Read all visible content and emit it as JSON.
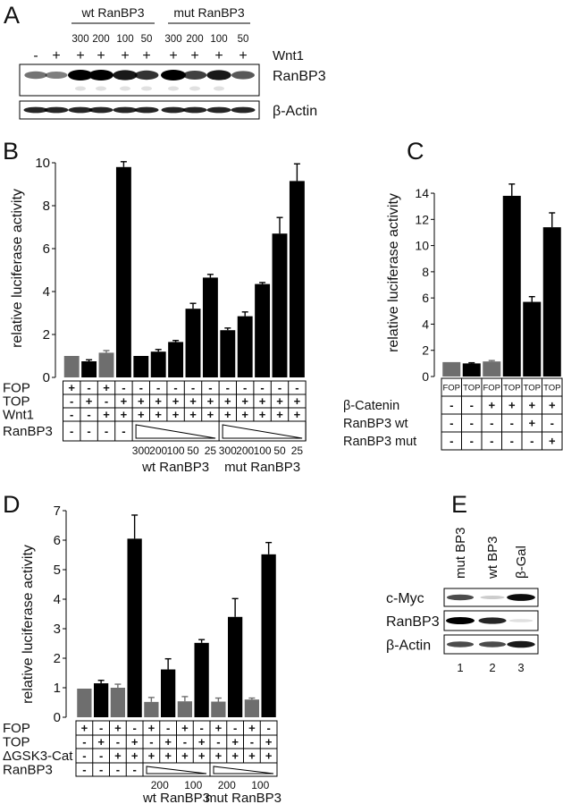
{
  "panel_labels": [
    "A",
    "B",
    "C",
    "D",
    "E"
  ],
  "colors": {
    "black": "#000000",
    "gray": "#6e6e6e"
  },
  "panel_a": {
    "groups": [
      "wt RanBP3",
      "mut RanBP3"
    ],
    "doses": [
      "300",
      "200",
      "100",
      "50",
      "300",
      "200",
      "100",
      "50"
    ],
    "wnt1_signs": [
      "-",
      "+",
      "+",
      "+",
      "+",
      "+",
      "+",
      "+",
      "+",
      "+"
    ],
    "wnt1_label": "Wnt1",
    "blots": [
      {
        "label": "RanBP3",
        "band_intensity": [
          0.55,
          0.5,
          1,
          1,
          0.9,
          0.8,
          1,
          0.75,
          0.9,
          0.65
        ]
      },
      {
        "label": "β-Actin",
        "band_intensity": [
          0.85,
          0.85,
          0.85,
          0.85,
          0.85,
          0.85,
          0.85,
          0.85,
          0.85,
          0.85
        ]
      }
    ]
  },
  "chart_data": [
    {
      "panel": "B",
      "type": "bar",
      "ylabel": "relative luciferase activity",
      "ylim": [
        0,
        10
      ],
      "yticks": [
        "0",
        "2",
        "4",
        "6",
        "8",
        "10"
      ],
      "grid": false,
      "values": [
        1.0,
        0.75,
        1.15,
        9.8,
        1.0,
        1.2,
        1.65,
        3.2,
        4.65,
        2.2,
        2.85,
        4.35,
        6.7,
        9.15
      ],
      "error_upper": [
        null,
        0.82,
        1.25,
        10.05,
        null,
        1.3,
        1.72,
        3.45,
        4.8,
        2.3,
        3.05,
        4.42,
        7.45,
        9.95
      ],
      "bar_colors": [
        "gray",
        "black",
        "gray",
        "black",
        "black",
        "black",
        "black",
        "black",
        "black",
        "black",
        "black",
        "black",
        "black",
        "black"
      ],
      "table": {
        "rows": [
          {
            "label": "FOP",
            "cells": [
              "+",
              "-",
              "+",
              "-",
              "-",
              "-",
              "-",
              "-",
              "-",
              "-",
              "-",
              "-",
              "-",
              "-"
            ]
          },
          {
            "label": "TOP",
            "cells": [
              "-",
              "+",
              "-",
              "+",
              "+",
              "+",
              "+",
              "+",
              "+",
              "+",
              "+",
              "+",
              "+",
              "+"
            ]
          },
          {
            "label": "Wnt1",
            "cells": [
              "-",
              "-",
              "+",
              "+",
              "+",
              "+",
              "+",
              "+",
              "+",
              "+",
              "+",
              "+",
              "+",
              "+"
            ]
          },
          {
            "label": "RanBP3",
            "cells": [
              "-",
              "-",
              "-",
              "-"
            ],
            "spans": [
              {
                "start": 4,
                "count": 5,
                "doses": [
                  "300",
                  "200",
                  "100",
                  "50",
                  "25"
                ],
                "group": "wt RanBP3"
              },
              {
                "start": 9,
                "count": 5,
                "doses": [
                  "300",
                  "200",
                  "100",
                  "50",
                  "25"
                ],
                "group": "mut RanBP3"
              }
            ]
          }
        ]
      }
    },
    {
      "panel": "C",
      "type": "bar",
      "ylabel": "relative luciferase activity",
      "ylim": [
        0,
        14
      ],
      "yticks": [
        "0",
        "2",
        "4",
        "6",
        "8",
        "10",
        "12",
        "14"
      ],
      "grid": false,
      "values": [
        1.1,
        1.0,
        1.15,
        13.8,
        5.7,
        11.4
      ],
      "error_upper": [
        null,
        1.05,
        1.22,
        14.7,
        6.1,
        12.5
      ],
      "bar_colors": [
        "gray",
        "black",
        "gray",
        "black",
        "black",
        "black"
      ],
      "table": {
        "rows": [
          {
            "label": "",
            "header": true,
            "cells": [
              "FOP",
              "TOP",
              "FOP",
              "TOP",
              "TOP",
              "TOP"
            ]
          },
          {
            "label": "β-Catenin",
            "cells": [
              "-",
              "-",
              "+",
              "+",
              "+",
              "+"
            ]
          },
          {
            "label": "RanBP3 wt",
            "cells": [
              "-",
              "-",
              "-",
              "-",
              "+",
              "-"
            ]
          },
          {
            "label": "RanBP3 mut",
            "cells": [
              "-",
              "-",
              "-",
              "-",
              "-",
              "+"
            ]
          }
        ]
      }
    },
    {
      "panel": "D",
      "type": "bar",
      "ylabel": "relative luciferase activity",
      "ylim": [
        0,
        7
      ],
      "yticks": [
        "0",
        "1",
        "2",
        "3",
        "4",
        "5",
        "6",
        "7"
      ],
      "grid": false,
      "values": [
        0.97,
        1.15,
        1.0,
        6.05,
        0.52,
        1.62,
        0.54,
        2.52,
        0.53,
        3.4,
        0.6,
        5.52
      ],
      "error_upper": [
        null,
        1.25,
        1.12,
        6.85,
        0.67,
        1.98,
        0.7,
        2.63,
        0.65,
        4.02,
        0.65,
        5.92
      ],
      "bar_colors": [
        "gray",
        "black",
        "gray",
        "black",
        "gray",
        "black",
        "gray",
        "black",
        "gray",
        "black",
        "gray",
        "black"
      ],
      "table": {
        "rows": [
          {
            "label": "FOP",
            "cells": [
              "+",
              "-",
              "+",
              "-",
              "+",
              "-",
              "+",
              "-",
              "+",
              "-",
              "+",
              "-"
            ]
          },
          {
            "label": "TOP",
            "cells": [
              "-",
              "+",
              "-",
              "+",
              "-",
              "+",
              "-",
              "+",
              "-",
              "+",
              "-",
              "+"
            ]
          },
          {
            "label": "ΔGSK3-Cat",
            "cells": [
              "-",
              "-",
              "+",
              "+",
              "+",
              "+",
              "+",
              "+",
              "+",
              "+",
              "+",
              "+"
            ]
          },
          {
            "label": "RanBP3",
            "cells": [
              "-",
              "-",
              "-",
              "-"
            ],
            "spans": [
              {
                "start": 4,
                "count": 4,
                "doses": [
                  "200",
                  "100"
                ],
                "group": "wt RanBP3"
              },
              {
                "start": 8,
                "count": 4,
                "doses": [
                  "200",
                  "100"
                ],
                "group": "mut RanBP3"
              }
            ]
          }
        ]
      }
    }
  ],
  "panel_e": {
    "lanes": [
      "mut BP3",
      "wt BP3",
      "β-Gal"
    ],
    "lane_numbers": [
      "1",
      "2",
      "3"
    ],
    "blots": [
      {
        "label": "c-Myc",
        "band_intensity": [
          0.7,
          0.2,
          0.95
        ]
      },
      {
        "label": "RanBP3",
        "band_intensity": [
          1,
          0.85,
          0.12
        ]
      },
      {
        "label": "β-Actin",
        "band_intensity": [
          0.7,
          0.7,
          0.9
        ]
      }
    ]
  }
}
